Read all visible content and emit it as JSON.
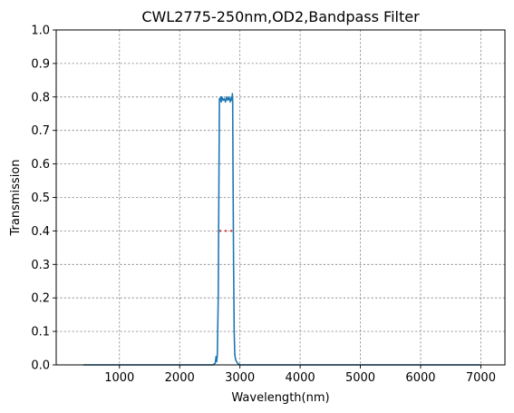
{
  "chart_data": {
    "type": "line",
    "title": "CWL2775-250nm,OD2,Bandpass Filter",
    "xlabel": "Wavelength(nm)",
    "ylabel": "Transmission",
    "xlim": [
      -50,
      7400
    ],
    "ylim": [
      0,
      1.0
    ],
    "xticks": [
      1000,
      2000,
      3000,
      4000,
      5000,
      6000,
      7000
    ],
    "xtick_labels": [
      "1000",
      "2000",
      "3000",
      "4000",
      "5000",
      "6000",
      "7000"
    ],
    "yticks": [
      0.0,
      0.1,
      0.2,
      0.3,
      0.4,
      0.5,
      0.6,
      0.7,
      0.8,
      0.9,
      1.0
    ],
    "ytick_labels": [
      "0.0",
      "0.1",
      "0.2",
      "0.3",
      "0.4",
      "0.5",
      "0.6",
      "0.7",
      "0.8",
      "0.9",
      "1.0"
    ],
    "grid": true,
    "series": [
      {
        "color": "#1f77b4",
        "x": [
          400,
          1000,
          2000,
          2550,
          2590,
          2605,
          2615,
          2625,
          2640,
          2650,
          2660,
          2670,
          2680,
          2690,
          2700,
          2720,
          2740,
          2760,
          2780,
          2800,
          2820,
          2840,
          2860,
          2870,
          2875,
          2880,
          2885,
          2895,
          2905,
          2915,
          2930,
          2960,
          3000,
          4000,
          5000,
          6000,
          7000
        ],
        "y": [
          0.0,
          0.0,
          0.0,
          0.0,
          0.005,
          0.025,
          0.01,
          0.03,
          0.2,
          0.5,
          0.795,
          0.79,
          0.8,
          0.785,
          0.8,
          0.79,
          0.795,
          0.785,
          0.8,
          0.79,
          0.8,
          0.785,
          0.8,
          0.79,
          0.81,
          0.79,
          0.6,
          0.3,
          0.1,
          0.03,
          0.015,
          0.005,
          0.0,
          0.0,
          0.0,
          0.0,
          0.0
        ]
      },
      {
        "color": "#d62728",
        "style": "dotted",
        "x": [
          2660,
          2890
        ],
        "y": [
          0.4,
          0.4
        ]
      }
    ]
  }
}
